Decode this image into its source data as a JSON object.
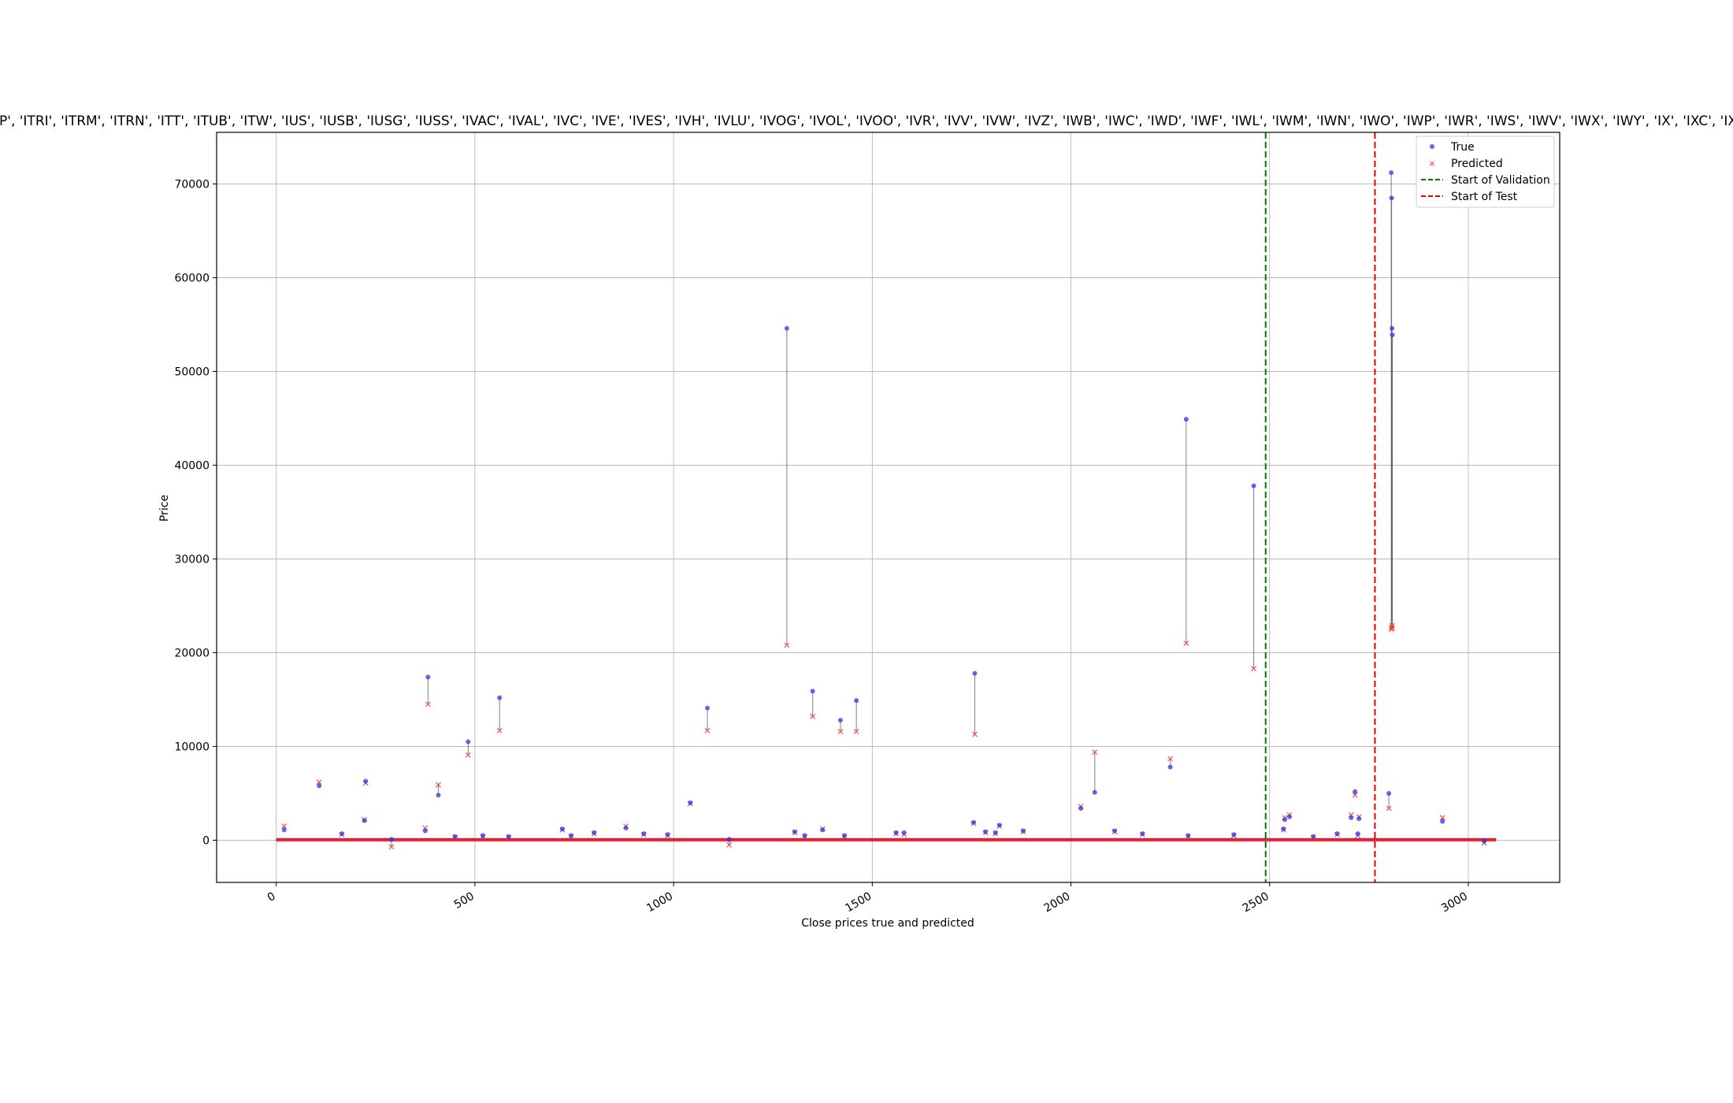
{
  "chart_data": {
    "type": "scatter",
    "title": "P', 'ITRI', 'ITRM', 'ITRN', 'ITT', 'ITUB', 'ITW', 'IUS', 'IUSB', 'IUSG', 'IUSS', 'IVAC', 'IVAL', 'IVC', 'IVE', 'IVES', 'IVH', 'IVLU', 'IVOG', 'IVOL', 'IVOO', 'IVR', 'IVV', 'IVW', 'IVZ', 'IWB', 'IWC', 'IWD', 'IWF', 'IWL', 'IWM', 'IWN', 'IWO', 'IWP', 'IWR', 'IWS', 'IWV', 'IWX', 'IWY', 'IX', 'IXC', 'IXG', 'IX",
    "xlabel": "Close prices true and predicted",
    "ylabel": "Price",
    "xlim": [
      -150,
      3230
    ],
    "ylim": [
      -4500,
      75500
    ],
    "xticks": [
      0,
      500,
      1000,
      1500,
      2000,
      2500,
      3000
    ],
    "yticks": [
      0,
      10000,
      20000,
      30000,
      40000,
      50000,
      60000,
      70000
    ],
    "grid": true,
    "legend_position": "top-right",
    "legend": [
      "True",
      "Predicted",
      "Start of Validation",
      "Start of Test"
    ],
    "colors": {
      "true": "#3333ee",
      "predicted": "#ee3333",
      "validation": "#007700",
      "test": "#dd0000",
      "connector": "#555555"
    },
    "n_points": 3070,
    "baseline_value": 100,
    "validation_start": 2490,
    "test_start": 2765,
    "points": [
      {
        "x": 20,
        "true": 1100,
        "pred": 1500
      },
      {
        "x": 108,
        "true": 5800,
        "pred": 6200
      },
      {
        "x": 165,
        "true": 700,
        "pred": 600
      },
      {
        "x": 222,
        "true": 2100,
        "pred": 2200
      },
      {
        "x": 225,
        "true": 6300,
        "pred": 6100
      },
      {
        "x": 290,
        "true": 100,
        "pred": -700
      },
      {
        "x": 375,
        "true": 1000,
        "pred": 1300
      },
      {
        "x": 382,
        "true": 17400,
        "pred": 14500
      },
      {
        "x": 408,
        "true": 4800,
        "pred": 5900
      },
      {
        "x": 450,
        "true": 400,
        "pred": 300
      },
      {
        "x": 483,
        "true": 10500,
        "pred": 9100
      },
      {
        "x": 520,
        "true": 500,
        "pred": 400
      },
      {
        "x": 562,
        "true": 15200,
        "pred": 11700
      },
      {
        "x": 585,
        "true": 400,
        "pred": 300
      },
      {
        "x": 720,
        "true": 1200,
        "pred": 1100
      },
      {
        "x": 742,
        "true": 500,
        "pred": 400
      },
      {
        "x": 800,
        "true": 800,
        "pred": 700
      },
      {
        "x": 880,
        "true": 1300,
        "pred": 1500
      },
      {
        "x": 925,
        "true": 700,
        "pred": 600
      },
      {
        "x": 985,
        "true": 600,
        "pred": 500
      },
      {
        "x": 1042,
        "true": 4000,
        "pred": 3900
      },
      {
        "x": 1085,
        "true": 14100,
        "pred": 11700
      },
      {
        "x": 1140,
        "true": 100,
        "pred": -500
      },
      {
        "x": 1285,
        "true": 54600,
        "pred": 20800
      },
      {
        "x": 1305,
        "true": 900,
        "pred": 800
      },
      {
        "x": 1330,
        "true": 500,
        "pred": 400
      },
      {
        "x": 1350,
        "true": 15900,
        "pred": 13200
      },
      {
        "x": 1375,
        "true": 1100,
        "pred": 1200
      },
      {
        "x": 1420,
        "true": 12800,
        "pred": 11600
      },
      {
        "x": 1430,
        "true": 500,
        "pred": 400
      },
      {
        "x": 1460,
        "true": 14900,
        "pred": 11600
      },
      {
        "x": 1560,
        "true": 800,
        "pred": 700
      },
      {
        "x": 1580,
        "true": 800,
        "pred": 600
      },
      {
        "x": 1755,
        "true": 1900,
        "pred": 1800
      },
      {
        "x": 1758,
        "true": 17800,
        "pred": 11300
      },
      {
        "x": 1785,
        "true": 900,
        "pred": 800
      },
      {
        "x": 1810,
        "true": 800,
        "pred": 700
      },
      {
        "x": 1820,
        "true": 1600,
        "pred": 1500
      },
      {
        "x": 1880,
        "true": 1000,
        "pred": 900
      },
      {
        "x": 2025,
        "true": 3400,
        "pred": 3600
      },
      {
        "x": 2060,
        "true": 5100,
        "pred": 9400
      },
      {
        "x": 2110,
        "true": 1000,
        "pred": 900
      },
      {
        "x": 2180,
        "true": 700,
        "pred": 600
      },
      {
        "x": 2250,
        "true": 7800,
        "pred": 8700
      },
      {
        "x": 2290,
        "true": 44900,
        "pred": 21000
      },
      {
        "x": 2295,
        "true": 500,
        "pred": 400
      },
      {
        "x": 2410,
        "true": 600,
        "pred": 500
      },
      {
        "x": 2460,
        "true": 37800,
        "pred": 18300
      },
      {
        "x": 2535,
        "true": 1200,
        "pred": 1100
      },
      {
        "x": 2538,
        "true": 2200,
        "pred": 2400
      },
      {
        "x": 2550,
        "true": 2500,
        "pred": 2700
      },
      {
        "x": 2610,
        "true": 400,
        "pred": 300
      },
      {
        "x": 2670,
        "true": 700,
        "pred": 600
      },
      {
        "x": 2705,
        "true": 2400,
        "pred": 2700
      },
      {
        "x": 2715,
        "true": 5200,
        "pred": 4800
      },
      {
        "x": 2725,
        "true": 2300,
        "pred": 2500
      },
      {
        "x": 2722,
        "true": 700,
        "pred": 500
      },
      {
        "x": 2800,
        "true": 5000,
        "pred": 3400
      },
      {
        "x": 2806,
        "true": 71200,
        "pred": 22500
      },
      {
        "x": 2807,
        "true": 68500,
        "pred": 22700
      },
      {
        "x": 2808,
        "true": 54600,
        "pred": 22900
      },
      {
        "x": 2809,
        "true": 53900,
        "pred": 22600
      },
      {
        "x": 2935,
        "true": 2000,
        "pred": 2400
      },
      {
        "x": 3040,
        "true": -100,
        "pred": -300
      }
    ]
  }
}
